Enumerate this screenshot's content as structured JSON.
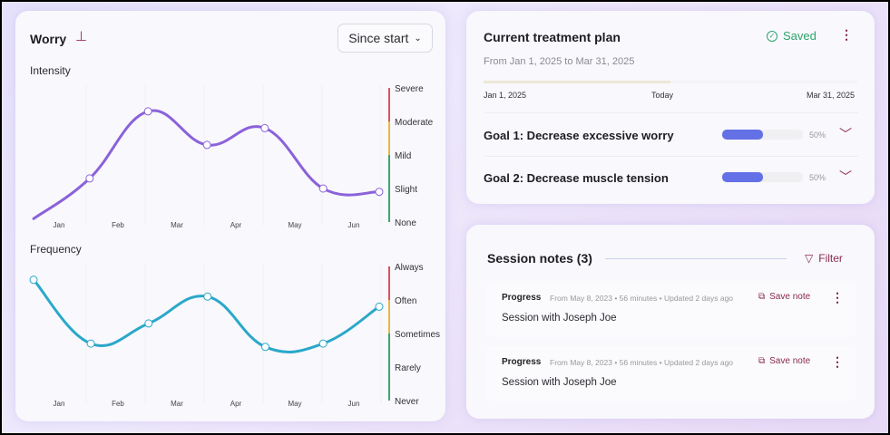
{
  "worry": {
    "title": "Worry",
    "pin_icon": "pin-icon",
    "range": "Since start",
    "intensity_label": "Intensity",
    "frequency_label": "Frequency"
  },
  "chart_data": [
    {
      "type": "line",
      "title": "Intensity",
      "categories": [
        "Jan",
        "Feb",
        "Mar",
        "Apr",
        "May",
        "Jun"
      ],
      "levels": [
        "None",
        "Slight",
        "Mild",
        "Moderate",
        "Severe"
      ],
      "level_colors": [
        "#3aa76d",
        "#3aa76d",
        "#e8b73a",
        "#d9535f",
        "#d9535f"
      ],
      "color": "#8b62d9",
      "x": [
        -0.43,
        0.52,
        1.51,
        2.51,
        3.49,
        4.48,
        5.43
      ],
      "y": [
        0.1,
        1.3,
        3.3,
        2.3,
        2.8,
        1.0,
        0.9
      ],
      "markers": [
        false,
        true,
        true,
        true,
        true,
        true,
        true
      ]
    },
    {
      "type": "line",
      "title": "Frequency",
      "categories": [
        "Jan",
        "Feb",
        "Mar",
        "Apr",
        "May",
        "Jun"
      ],
      "levels": [
        "Never",
        "Rarely",
        "Sometimes",
        "Often",
        "Always"
      ],
      "level_colors": [
        "#3aa76d",
        "#3aa76d",
        "#e8b73a",
        "#d9535f",
        "#d9535f"
      ],
      "color": "#2aa8c8",
      "x": [
        -0.43,
        0.54,
        1.52,
        2.52,
        3.5,
        4.48,
        5.43
      ],
      "y": [
        3.6,
        1.7,
        2.3,
        3.1,
        1.6,
        1.7,
        2.8
      ],
      "markers": [
        true,
        true,
        true,
        true,
        true,
        true,
        true
      ]
    }
  ],
  "plan": {
    "title": "Current treatment plan",
    "status": "Saved",
    "status_color": "#2fa36b",
    "range": "From Jan 1, 2025 to  Mar 31, 2025",
    "start": "Jan 1, 2025",
    "today": "Today",
    "end": "Mar 31, 2025",
    "elapsed": 0.5,
    "goals": [
      {
        "label": "Goal 1: Decrease excessive worry",
        "progress": 0.5,
        "pct": "50%"
      },
      {
        "label": "Goal 2: Decrease muscle tension",
        "progress": 0.5,
        "pct": "50%"
      }
    ]
  },
  "notes": {
    "title": "Session notes (3)",
    "filter": "Filter",
    "items": [
      {
        "type": "Progress",
        "meta": "From May 8, 2023 • 56 minutes • Updated 2 days ago",
        "save": "Save note",
        "text": "Session with Joseph Joe"
      },
      {
        "type": "Progress",
        "meta": "From May 8, 2023 • 56 minutes • Updated 2 days ago",
        "save": "Save note",
        "text": "Session with Joseph Joe"
      }
    ]
  }
}
